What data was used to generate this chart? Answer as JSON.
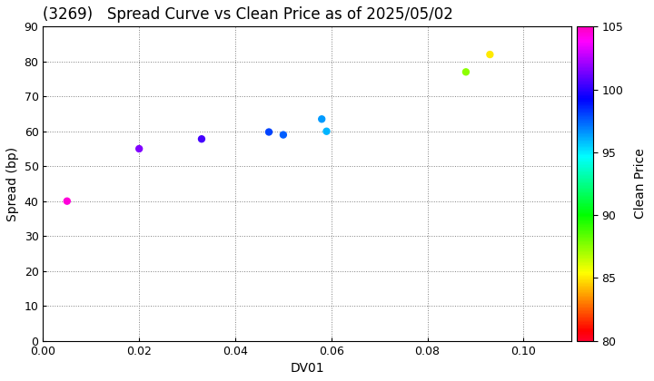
{
  "title": "(3269)   Spread Curve vs Clean Price as of 2025/05/02",
  "xlabel": "DV01",
  "ylabel": "Spread (bp)",
  "points": [
    {
      "dv01": 0.005,
      "spread": 40,
      "price": 104.5
    },
    {
      "dv01": 0.02,
      "spread": 55,
      "price": 101.5
    },
    {
      "dv01": 0.033,
      "spread": 57.8,
      "price": 100.5
    },
    {
      "dv01": 0.047,
      "spread": 59.8,
      "price": 98.0
    },
    {
      "dv01": 0.05,
      "spread": 59.0,
      "price": 97.5
    },
    {
      "dv01": 0.058,
      "spread": 63.5,
      "price": 96.5
    },
    {
      "dv01": 0.059,
      "spread": 60.0,
      "price": 96.0
    },
    {
      "dv01": 0.088,
      "spread": 77.0,
      "price": 87.5
    },
    {
      "dv01": 0.093,
      "spread": 82.0,
      "price": 85.0
    }
  ],
  "xlim": [
    0.0,
    0.11
  ],
  "ylim": [
    0,
    90
  ],
  "cmap": "gist_rainbow",
  "cmap_min": 80,
  "cmap_max": 105,
  "colorbar_label": "Clean Price",
  "colorbar_ticks": [
    80,
    85,
    90,
    95,
    100,
    105
  ],
  "marker_size": 25,
  "title_fontsize": 12,
  "axis_fontsize": 10,
  "tick_fontsize": 9,
  "cbar_fontsize": 10,
  "bg_color": "#ffffff"
}
